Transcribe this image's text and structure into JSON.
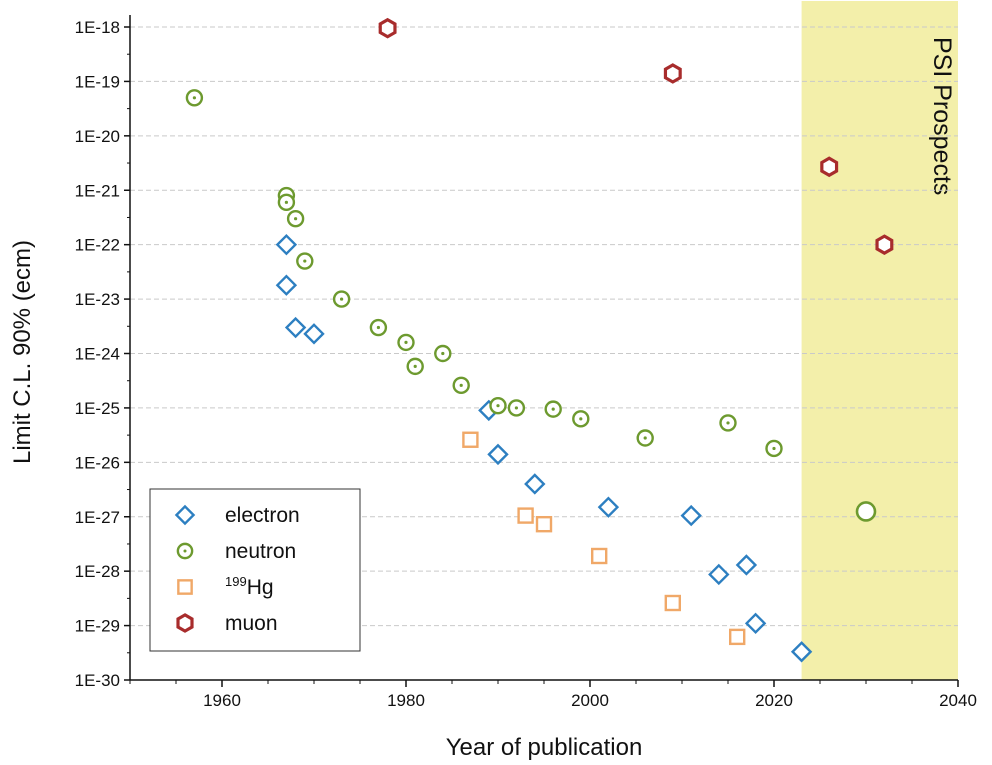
{
  "chart_data": {
    "type": "scatter",
    "title": "",
    "xlabel": "Year of publication",
    "ylabel": "Limit C.L. 90% (ecm)",
    "xlim": [
      1950,
      2040
    ],
    "ylim": [
      1e-30,
      1e-18
    ],
    "y_scale": "log",
    "x_ticks": [
      1960,
      1980,
      2000,
      2020,
      2040
    ],
    "x_tick_labels": [
      "1960",
      "1980",
      "2000",
      "2020",
      "2040"
    ],
    "y_tick_labels": [
      "1E-18",
      "1E-19",
      "1E-20",
      "1E-21",
      "1E-22",
      "1E-23",
      "1E-24",
      "1E-25",
      "1E-26",
      "1E-27",
      "1E-28",
      "1E-29",
      "1E-30"
    ],
    "grid": "horizontal dashed",
    "legend_position": "bottom-left",
    "legend": [
      {
        "label": "electron",
        "prefix": "",
        "sup": "",
        "marker": "diamond",
        "color": "#2d7fc1"
      },
      {
        "label": "neutron",
        "prefix": "",
        "sup": "",
        "marker": "circle-dot",
        "color": "#6d9a2f"
      },
      {
        "label": "Hg",
        "prefix": "",
        "sup": "199",
        "marker": "square",
        "color": "#f0a868"
      },
      {
        "label": "muon",
        "prefix": "",
        "sup": "",
        "marker": "hexagon",
        "color": "#a82c2c"
      }
    ],
    "region": {
      "label": "PSI Prospects",
      "x_start": 2023,
      "x_end": 2040,
      "color": "#f3efaa"
    },
    "series": [
      {
        "name": "electron",
        "marker": "diamond",
        "color": "#2d7fc1",
        "points": [
          [
            1967,
            1e-22
          ],
          [
            1967,
            1.8e-23
          ],
          [
            1968,
            3e-24
          ],
          [
            1970,
            2.3e-24
          ],
          [
            1989,
            9e-26
          ],
          [
            1990,
            1.4e-26
          ],
          [
            1994,
            4e-27
          ],
          [
            2002,
            1.5e-27
          ],
          [
            2011,
            1.05e-27
          ],
          [
            2014,
            8.7e-29
          ],
          [
            2017,
            1.3e-28
          ],
          [
            2018,
            1.1e-29
          ],
          [
            2023,
            3.3e-30
          ]
        ]
      },
      {
        "name": "neutron",
        "marker": "circle-dot",
        "color": "#6d9a2f",
        "points": [
          [
            1957,
            5e-20
          ],
          [
            1967,
            8e-22
          ],
          [
            1967,
            6e-22
          ],
          [
            1968,
            3e-22
          ],
          [
            1969,
            5e-23
          ],
          [
            1973,
            1e-23
          ],
          [
            1977,
            3e-24
          ],
          [
            1980,
            1.6e-24
          ],
          [
            1981,
            5.8e-25
          ],
          [
            1984,
            1e-24
          ],
          [
            1986,
            2.6e-25
          ],
          [
            1990,
            1.1e-25
          ],
          [
            1992,
            1e-25
          ],
          [
            1996,
            9.5e-26
          ],
          [
            1999,
            6.3e-26
          ],
          [
            2006,
            2.8e-26
          ],
          [
            2015,
            5.3e-26
          ],
          [
            2020,
            1.8e-26
          ]
        ]
      },
      {
        "name": "199Hg",
        "marker": "square",
        "color": "#f0a868",
        "points": [
          [
            1987,
            2.6e-26
          ],
          [
            1993,
            1.05e-27
          ],
          [
            1995,
            7.3e-28
          ],
          [
            2001,
            1.9e-28
          ],
          [
            2009,
            2.6e-29
          ],
          [
            2016,
            6.2e-30
          ]
        ]
      },
      {
        "name": "muon",
        "marker": "hexagon",
        "color": "#a82c2c",
        "points": [
          [
            1978,
            9.5e-19
          ],
          [
            2009,
            1.4e-19
          ],
          [
            2026,
            2.7e-21
          ],
          [
            2032,
            1e-22
          ]
        ]
      },
      {
        "name": "neutron prospect",
        "marker": "circle-open",
        "color": "#6d9a2f",
        "points": [
          [
            2030,
            1.25e-27
          ]
        ]
      }
    ]
  }
}
